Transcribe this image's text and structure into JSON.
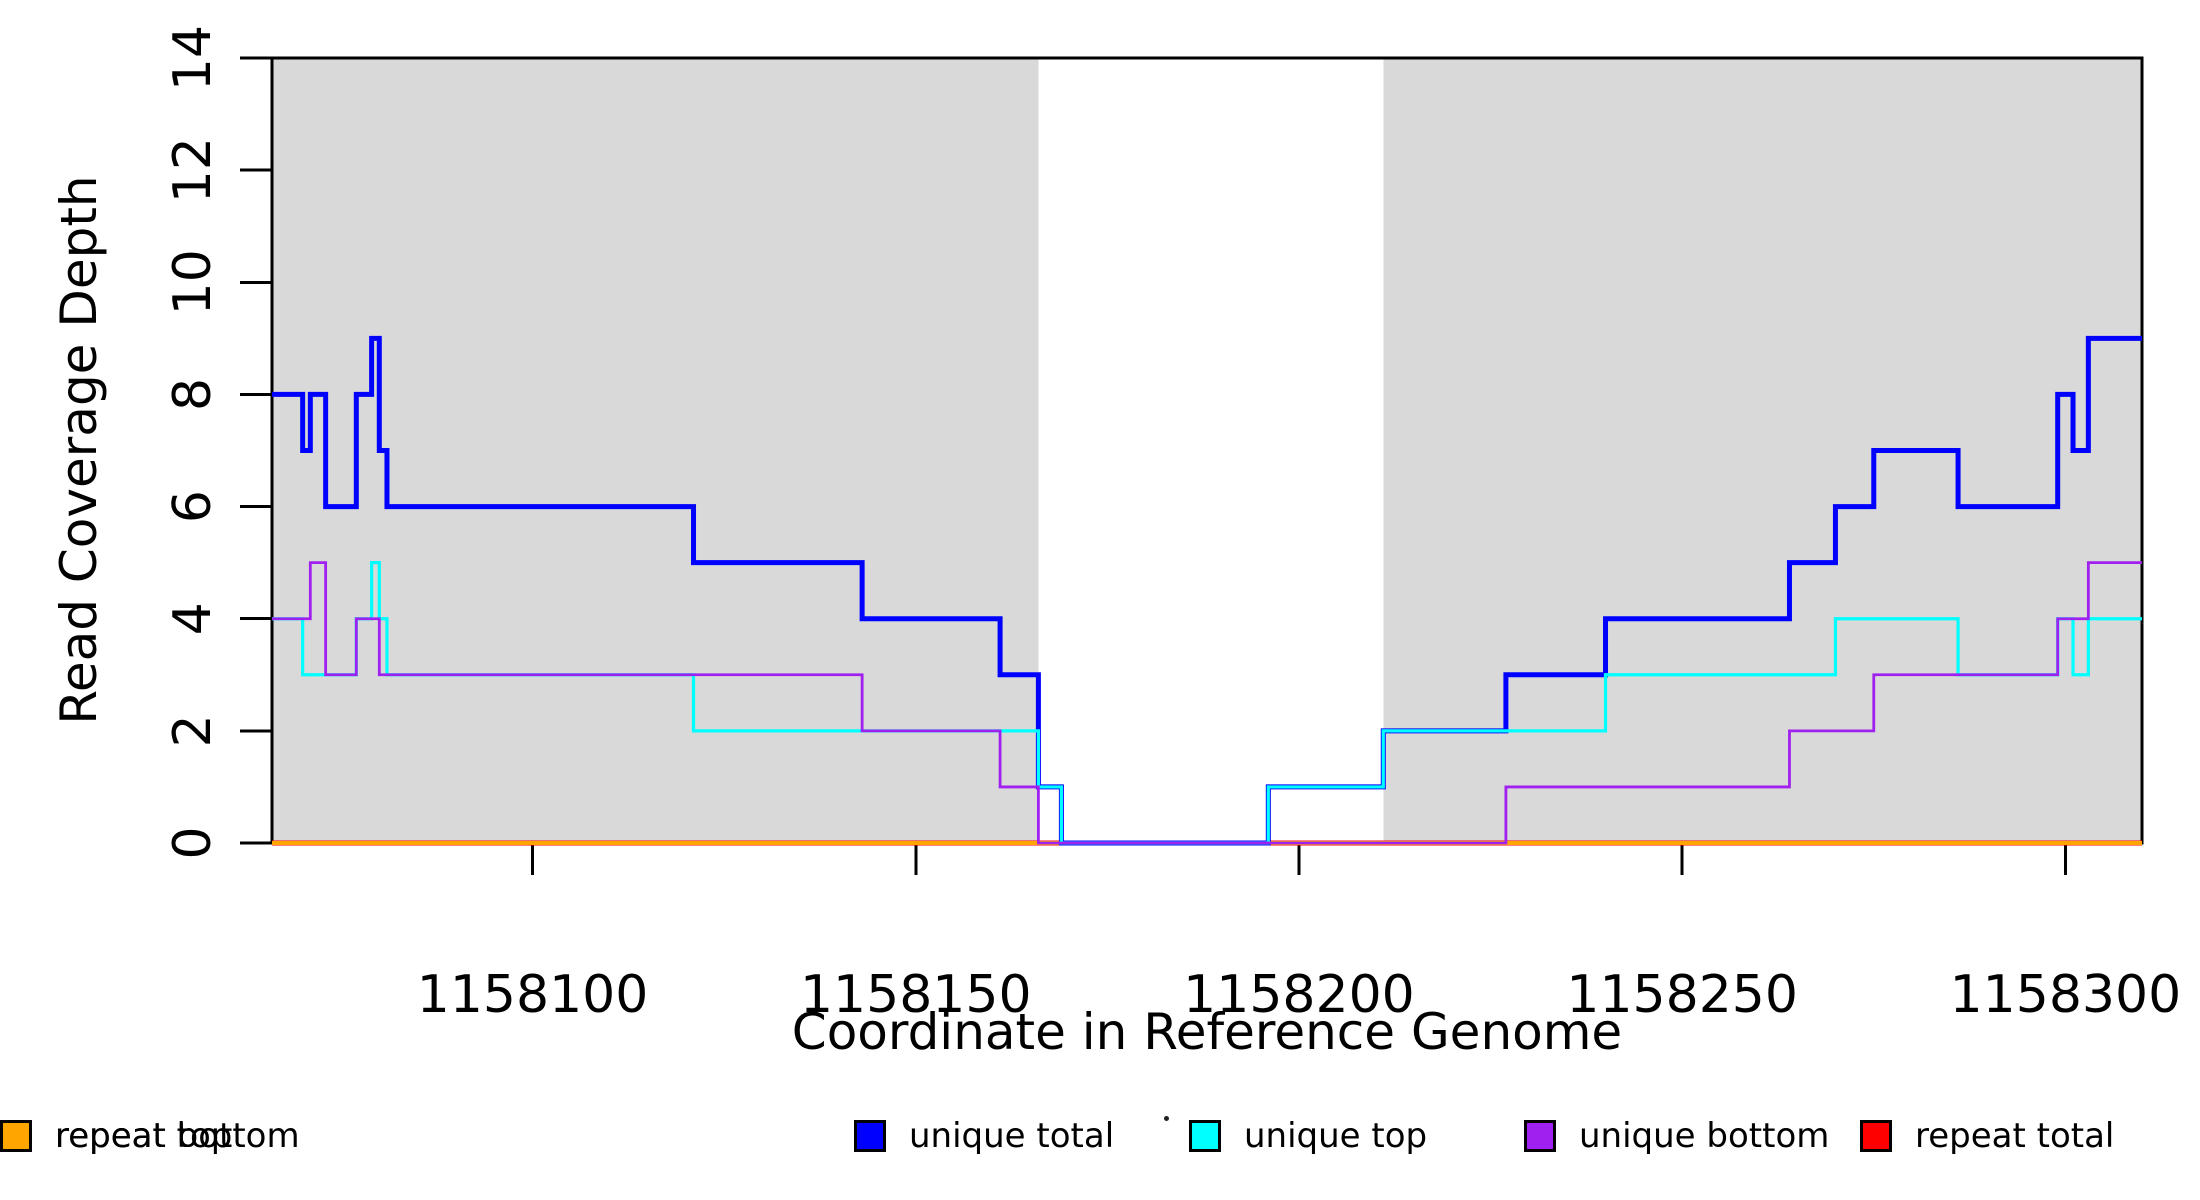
{
  "chart_data": {
    "type": "line",
    "subtype": "step",
    "title": "",
    "xlabel": "Coordinate in Reference Genome",
    "ylabel": "Read Coverage Depth",
    "xlim": [
      1158066,
      1158310
    ],
    "ylim": [
      0,
      14
    ],
    "x_ticks": [
      1158100,
      1158150,
      1158200,
      1158250,
      1158300
    ],
    "y_ticks": [
      0,
      2,
      4,
      6,
      8,
      10,
      12,
      14
    ],
    "grid": false,
    "legend_position": "bottom",
    "background_shading": [
      {
        "x_start": 1158066,
        "x_end": 1158166,
        "color": "#D9D9D9"
      },
      {
        "x_start": 1158211,
        "x_end": 1158310,
        "color": "#D9D9D9"
      }
    ],
    "series": [
      {
        "name": "unique total",
        "color": "#0000FF",
        "line_width": 5,
        "steps": [
          [
            1158066,
            8
          ],
          [
            1158070,
            7
          ],
          [
            1158071,
            8
          ],
          [
            1158073,
            6
          ],
          [
            1158077,
            8
          ],
          [
            1158079,
            9
          ],
          [
            1158080,
            7
          ],
          [
            1158081,
            6
          ],
          [
            1158121,
            5
          ],
          [
            1158143,
            4
          ],
          [
            1158161,
            3
          ],
          [
            1158166,
            1
          ],
          [
            1158169,
            0
          ],
          [
            1158196,
            1
          ],
          [
            1158211,
            2
          ],
          [
            1158227,
            3
          ],
          [
            1158240,
            4
          ],
          [
            1158264,
            5
          ],
          [
            1158270,
            6
          ],
          [
            1158275,
            7
          ],
          [
            1158286,
            6
          ],
          [
            1158299,
            8
          ],
          [
            1158301,
            7
          ],
          [
            1158303,
            9
          ]
        ]
      },
      {
        "name": "unique top",
        "color": "#00FFFF",
        "line_width": 3.2,
        "steps": [
          [
            1158066,
            4
          ],
          [
            1158070,
            3
          ],
          [
            1158077,
            4
          ],
          [
            1158079,
            5
          ],
          [
            1158080,
            4
          ],
          [
            1158081,
            3
          ],
          [
            1158121,
            2
          ],
          [
            1158166,
            1
          ],
          [
            1158169,
            0
          ],
          [
            1158196,
            1
          ],
          [
            1158211,
            2
          ],
          [
            1158240,
            3
          ],
          [
            1158270,
            4
          ],
          [
            1158286,
            3
          ],
          [
            1158299,
            4
          ],
          [
            1158301,
            3
          ],
          [
            1158303,
            4
          ]
        ]
      },
      {
        "name": "unique bottom",
        "color": "#A020F0",
        "line_width": 2.8,
        "steps": [
          [
            1158066,
            4
          ],
          [
            1158071,
            5
          ],
          [
            1158073,
            3
          ],
          [
            1158077,
            4
          ],
          [
            1158080,
            3
          ],
          [
            1158143,
            2
          ],
          [
            1158161,
            1
          ],
          [
            1158166,
            0
          ],
          [
            1158227,
            1
          ],
          [
            1158264,
            2
          ],
          [
            1158275,
            3
          ],
          [
            1158299,
            4
          ],
          [
            1158303,
            5
          ]
        ]
      },
      {
        "name": "repeat total",
        "color": "#FF0000",
        "line_width": 5,
        "steps": [
          [
            1158066,
            0
          ]
        ]
      },
      {
        "name": "repeat top",
        "color": "#FFFF00",
        "line_width": 5,
        "steps": [
          [
            1158066,
            0
          ]
        ]
      },
      {
        "name": "repeat bottom",
        "color": "#FFA500",
        "line_width": 4,
        "steps": [
          [
            1158066,
            0
          ]
        ]
      }
    ],
    "draw_order": [
      4,
      3,
      5,
      0,
      1,
      2
    ],
    "legend": [
      "unique total",
      "unique top",
      "unique bottom",
      "repeat total",
      "repeat top",
      "repeat bottom"
    ]
  }
}
